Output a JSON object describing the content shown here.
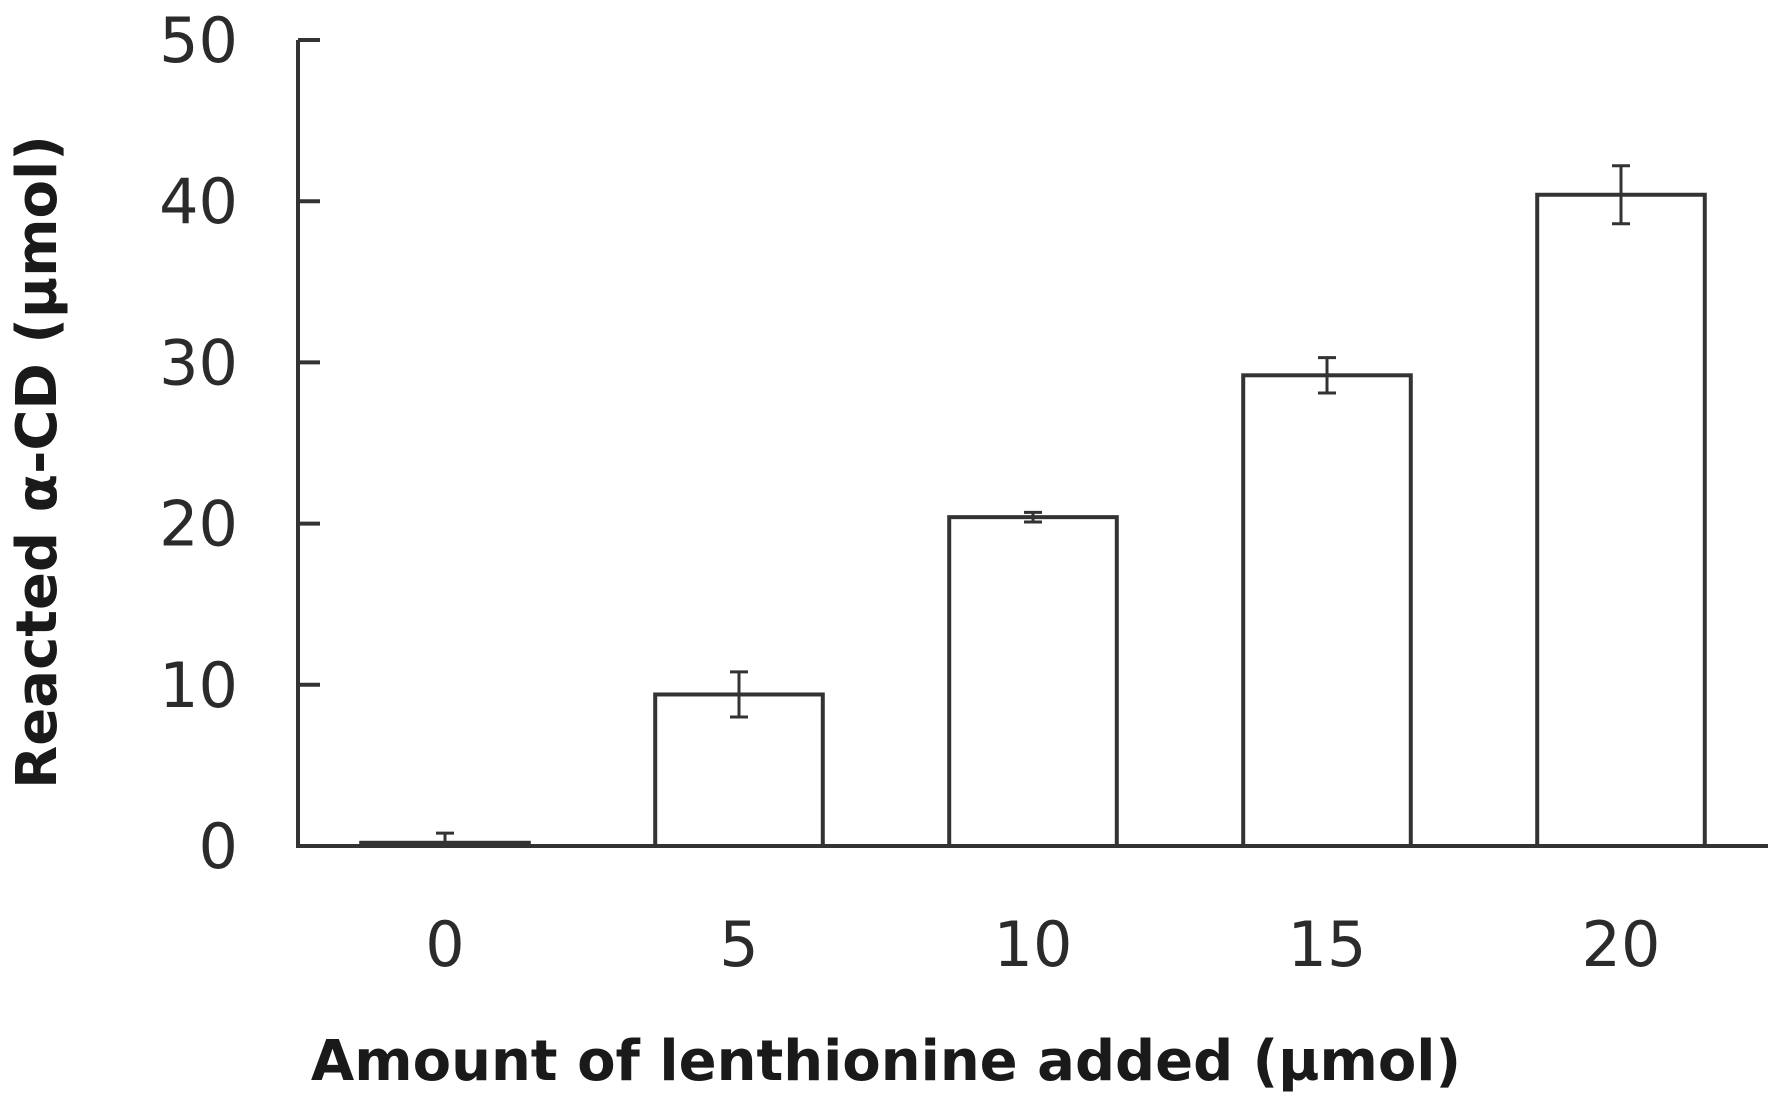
{
  "chart_data": {
    "type": "bar",
    "title": "",
    "xlabel": "Amount of lenthionine added (µmol)",
    "ylabel": "Reacted α-CD (µmol)",
    "categories": [
      "0",
      "5",
      "10",
      "15",
      "20"
    ],
    "values": [
      0.2,
      9.4,
      20.4,
      29.2,
      40.4
    ],
    "errors": [
      0.6,
      1.4,
      0.3,
      1.1,
      1.8
    ],
    "ylim": [
      0,
      50
    ],
    "yticks": [
      "0",
      "10",
      "20",
      "30",
      "40",
      "50"
    ],
    "bar_fill": "#ffffff",
    "bar_stroke": "#333333",
    "grid": false,
    "legend": "none"
  }
}
